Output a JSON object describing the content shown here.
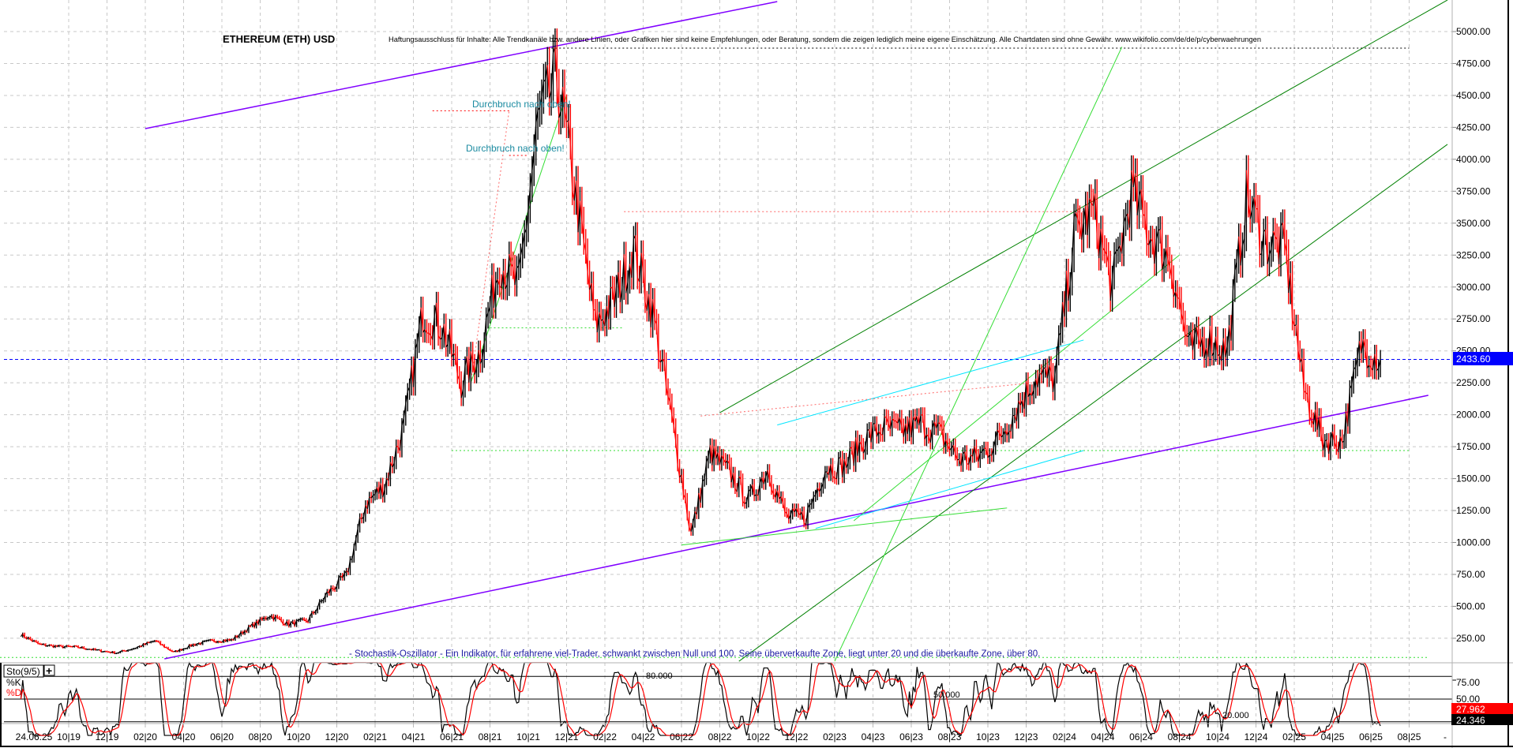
{
  "title": "ETHEREUM (ETH) USD",
  "disclaimer": "Haftungsausschluss für Inhalte: Alle Trendkanäle bzw. andere Linien, oder Grafiken hier sind keine Empfehlungen, oder Beratung, sondern die zeigen lediglich meine eigene Einschätzung. Alle Chartdaten sind ohne Gewähr.  www.wikifolio.com/de/de/p/cyberwaehrungen",
  "annotations": {
    "breakout_1": "Durchbruch nach oben!",
    "breakout_2": "Durchbruch nach oben!",
    "stochastic_note": "- Stochastik-Oszillator - Ein Indikator, für erfahrene viel-Trader, schwankt zwischen Null und 100. Seine überverkaufte Zone, liegt unter 20 und die überkaufte Zone, über 80."
  },
  "indicator": {
    "name": "Sto(9/5)",
    "k_label": "%K",
    "d_label": "%D",
    "level_labels": [
      "80.000",
      "50.000",
      "20.000"
    ],
    "axis_ticks": [
      "75.00",
      "50.00"
    ],
    "d_value": "27.962",
    "k_value": "24.346",
    "k_color": "#000000",
    "d_color": "#ff0000"
  },
  "colors": {
    "up": "#000000",
    "down": "#ff0000",
    "last_price_bg": "#0000ff",
    "channel": "#8000ff",
    "trend_dark": "#008000",
    "trend_light": "#33dd33",
    "trend_cyan": "#00e5ff"
  },
  "chart_data": {
    "type": "line",
    "title": "ETHEREUM (ETH) USD",
    "xlabel": "",
    "ylabel": "",
    "ylim": [
      0,
      5200
    ],
    "grid": true,
    "last_price": 2433.6,
    "last_price_label": "2433.60",
    "y_ticks": [
      "250.00",
      "500.00",
      "750.00",
      "1000.00",
      "1250.00",
      "1500.00",
      "1750.00",
      "2000.00",
      "2250.00",
      "2500.00",
      "2750.00",
      "3000.00",
      "3250.00",
      "3500.00",
      "3750.00",
      "4000.00",
      "4250.00",
      "4500.00",
      "4750.00",
      "5000.00"
    ],
    "x_ticks": [
      "24.06.25",
      "10|19",
      "12|19",
      "02|20",
      "04|20",
      "06|20",
      "08|20",
      "10|20",
      "12|20",
      "02|21",
      "04|21",
      "06|21",
      "08|21",
      "10|21",
      "12|21",
      "02|22",
      "04|22",
      "06|22",
      "08|22",
      "10|22",
      "12|22",
      "02|23",
      "04|23",
      "06|23",
      "08|23",
      "10|23",
      "12|23",
      "02|24",
      "04|24",
      "06|24",
      "08|24",
      "10|24",
      "12|24",
      "02|25",
      "04|25",
      "06|25",
      "08|25",
      "-"
    ],
    "series": [
      {
        "dates": [
          "2019-07",
          "2019-08",
          "2019-09",
          "2019-10",
          "2019-11",
          "2019-12",
          "2020-01",
          "2020-02",
          "2020-03",
          "2020-04",
          "2020-05",
          "2020-06",
          "2020-07",
          "2020-08",
          "2020-09",
          "2020-10",
          "2020-11",
          "2020-12",
          "2021-01",
          "2021-02",
          "2021-03",
          "2021-04",
          "2021-05",
          "2021-06",
          "2021-07",
          "2021-08",
          "2021-09",
          "2021-10",
          "2021-11",
          "2021-12",
          "2022-01",
          "2022-02",
          "2022-03",
          "2022-04",
          "2022-05",
          "2022-06",
          "2022-07",
          "2022-08",
          "2022-09",
          "2022-10",
          "2022-11",
          "2022-12",
          "2023-01",
          "2023-02",
          "2023-03",
          "2023-04",
          "2023-05",
          "2023-06",
          "2023-07",
          "2023-08",
          "2023-09",
          "2023-10",
          "2023-11",
          "2023-12",
          "2024-01",
          "2024-02",
          "2024-03",
          "2024-04",
          "2024-05",
          "2024-06",
          "2024-07",
          "2024-08",
          "2024-09",
          "2024-10",
          "2024-11",
          "2024-12",
          "2025-01",
          "2025-02",
          "2025-03",
          "2025-04",
          "2025-05",
          "2025-06"
        ],
        "values": [
          280,
          200,
          185,
          180,
          155,
          135,
          175,
          230,
          140,
          200,
          230,
          235,
          340,
          430,
          360,
          390,
          600,
          740,
          1300,
          1450,
          1900,
          2800,
          2700,
          2250,
          2500,
          3200,
          3000,
          4300,
          4650,
          3700,
          2700,
          2900,
          3300,
          2800,
          1950,
          1070,
          1700,
          1550,
          1330,
          1570,
          1200,
          1200,
          1580,
          1600,
          1800,
          1900,
          1870,
          1930,
          1850,
          1650,
          1670,
          1800,
          2050,
          2300,
          2280,
          3400,
          3600,
          3000,
          3750,
          3400,
          3230,
          2500,
          2600,
          2500,
          3700,
          3350,
          3300,
          2200,
          1800,
          1800,
          2550,
          2434
        ]
      }
    ],
    "levels": [
      {
        "price": 4870,
        "from": "2021-11",
        "to": "2025-08",
        "color": "#000000"
      },
      {
        "price": 4380,
        "from": "2021-05",
        "to": "2021-09",
        "color": "#ff0000"
      },
      {
        "price": 4030,
        "from": "2021-09",
        "to": "2021-10",
        "color": "#ff0000"
      },
      {
        "price": 3590,
        "from": "2022-03",
        "to": "2024-03",
        "color": "#ff6666"
      },
      {
        "price": 2680,
        "from": "2021-08",
        "to": "2022-03",
        "color": "#33dd33"
      },
      {
        "price": 1720,
        "from": "2021-06",
        "to": "2025-08",
        "color": "#33dd33"
      },
      {
        "price": 100,
        "from": "2019-06",
        "to": "2025-09",
        "color": "#33dd33"
      }
    ],
    "trendlines": [
      {
        "from": [
          "2020-02",
          4240
        ],
        "to": [
          "2022-11",
          5235
        ],
        "color": "#8000ff"
      },
      {
        "from": [
          "2020-03",
          89
        ],
        "to": [
          "2025-09",
          2152
        ],
        "color": "#8000ff"
      },
      {
        "from": [
          "2022-08",
          2016
        ],
        "to": [
          "2025-10",
          5247
        ],
        "color": "#008000"
      },
      {
        "from": [
          "2022-09",
          70
        ],
        "to": [
          "2025-10",
          4117
        ],
        "color": "#008000"
      },
      {
        "from": [
          "2023-02",
          70
        ],
        "to": [
          "2024-05",
          4880
        ],
        "color": "#33dd33"
      },
      {
        "from": [
          "2023-03",
          1170
        ],
        "to": [
          "2024-08",
          3250
        ],
        "color": "#33dd33"
      },
      {
        "from": [
          "2021-07",
          2250
        ],
        "to": [
          "2021-12",
          4500
        ],
        "color": "#33dd33"
      },
      {
        "from": [
          "2022-11",
          1920
        ],
        "to": [
          "2024-03",
          2585
        ],
        "color": "#00e5ff"
      },
      {
        "from": [
          "2023-01",
          1110
        ],
        "to": [
          "2024-03",
          1720
        ],
        "color": "#00e5ff"
      },
      {
        "from": [
          "2022-06",
          980
        ],
        "to": [
          "2023-11",
          1270
        ],
        "color": "#33dd33"
      },
      {
        "from": [
          "2022-07",
          1990
        ],
        "to": [
          "2024-01",
          2260
        ],
        "color": "#ff6666"
      },
      {
        "from": [
          "2021-07",
          2250
        ],
        "to": [
          "2021-09",
          4380
        ],
        "color": "#ff6666"
      }
    ]
  }
}
